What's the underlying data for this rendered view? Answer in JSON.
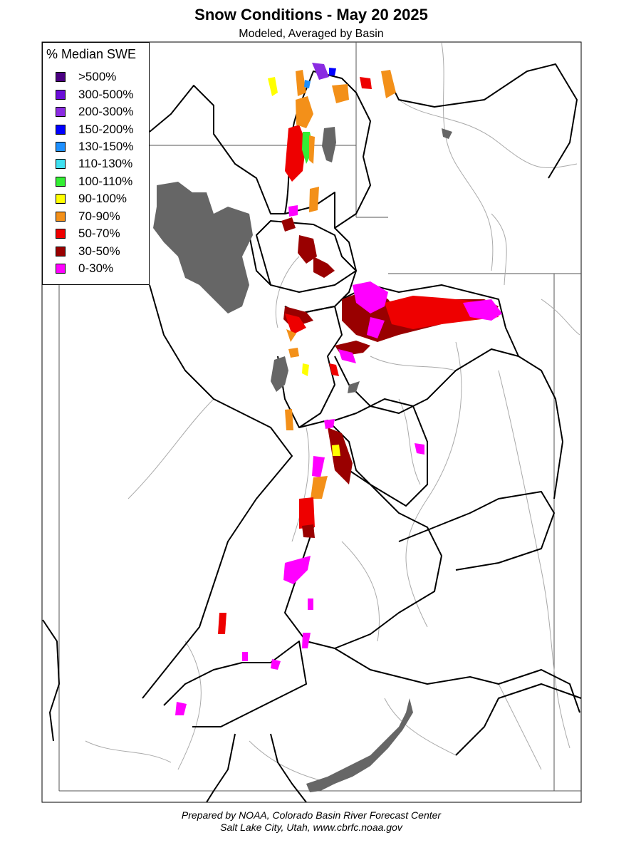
{
  "title": "Snow Conditions - May 20 2025",
  "subtitle": "Modeled, Averaged by Basin",
  "legend": {
    "title": "% Median SWE",
    "items": [
      {
        "label": ">500%",
        "color": "#4b0082"
      },
      {
        "label": "300-500%",
        "color": "#6a0dd8"
      },
      {
        "label": "200-300%",
        "color": "#8a2be2"
      },
      {
        "label": "150-200%",
        "color": "#0000ff"
      },
      {
        "label": "130-150%",
        "color": "#1e90ff"
      },
      {
        "label": "110-130%",
        "color": "#40e0f0"
      },
      {
        "label": "100-110%",
        "color": "#33ee33"
      },
      {
        "label": "90-100%",
        "color": "#ffff00"
      },
      {
        "label": "70-90%",
        "color": "#f39019"
      },
      {
        "label": "50-70%",
        "color": "#ee0000"
      },
      {
        "label": "30-50%",
        "color": "#990000"
      },
      {
        "label": "0-30%",
        "color": "#ff00ff"
      }
    ]
  },
  "credits": {
    "line1": "Prepared by NOAA, Colorado Basin River Forecast Center",
    "line2": "Salt Lake City, Utah, www.cbrfc.noaa.gov"
  },
  "colors": {
    "lake": "#666666",
    "river": "#aaaaaa",
    "basin_border": "#000000",
    "state_border": "#555555"
  }
}
